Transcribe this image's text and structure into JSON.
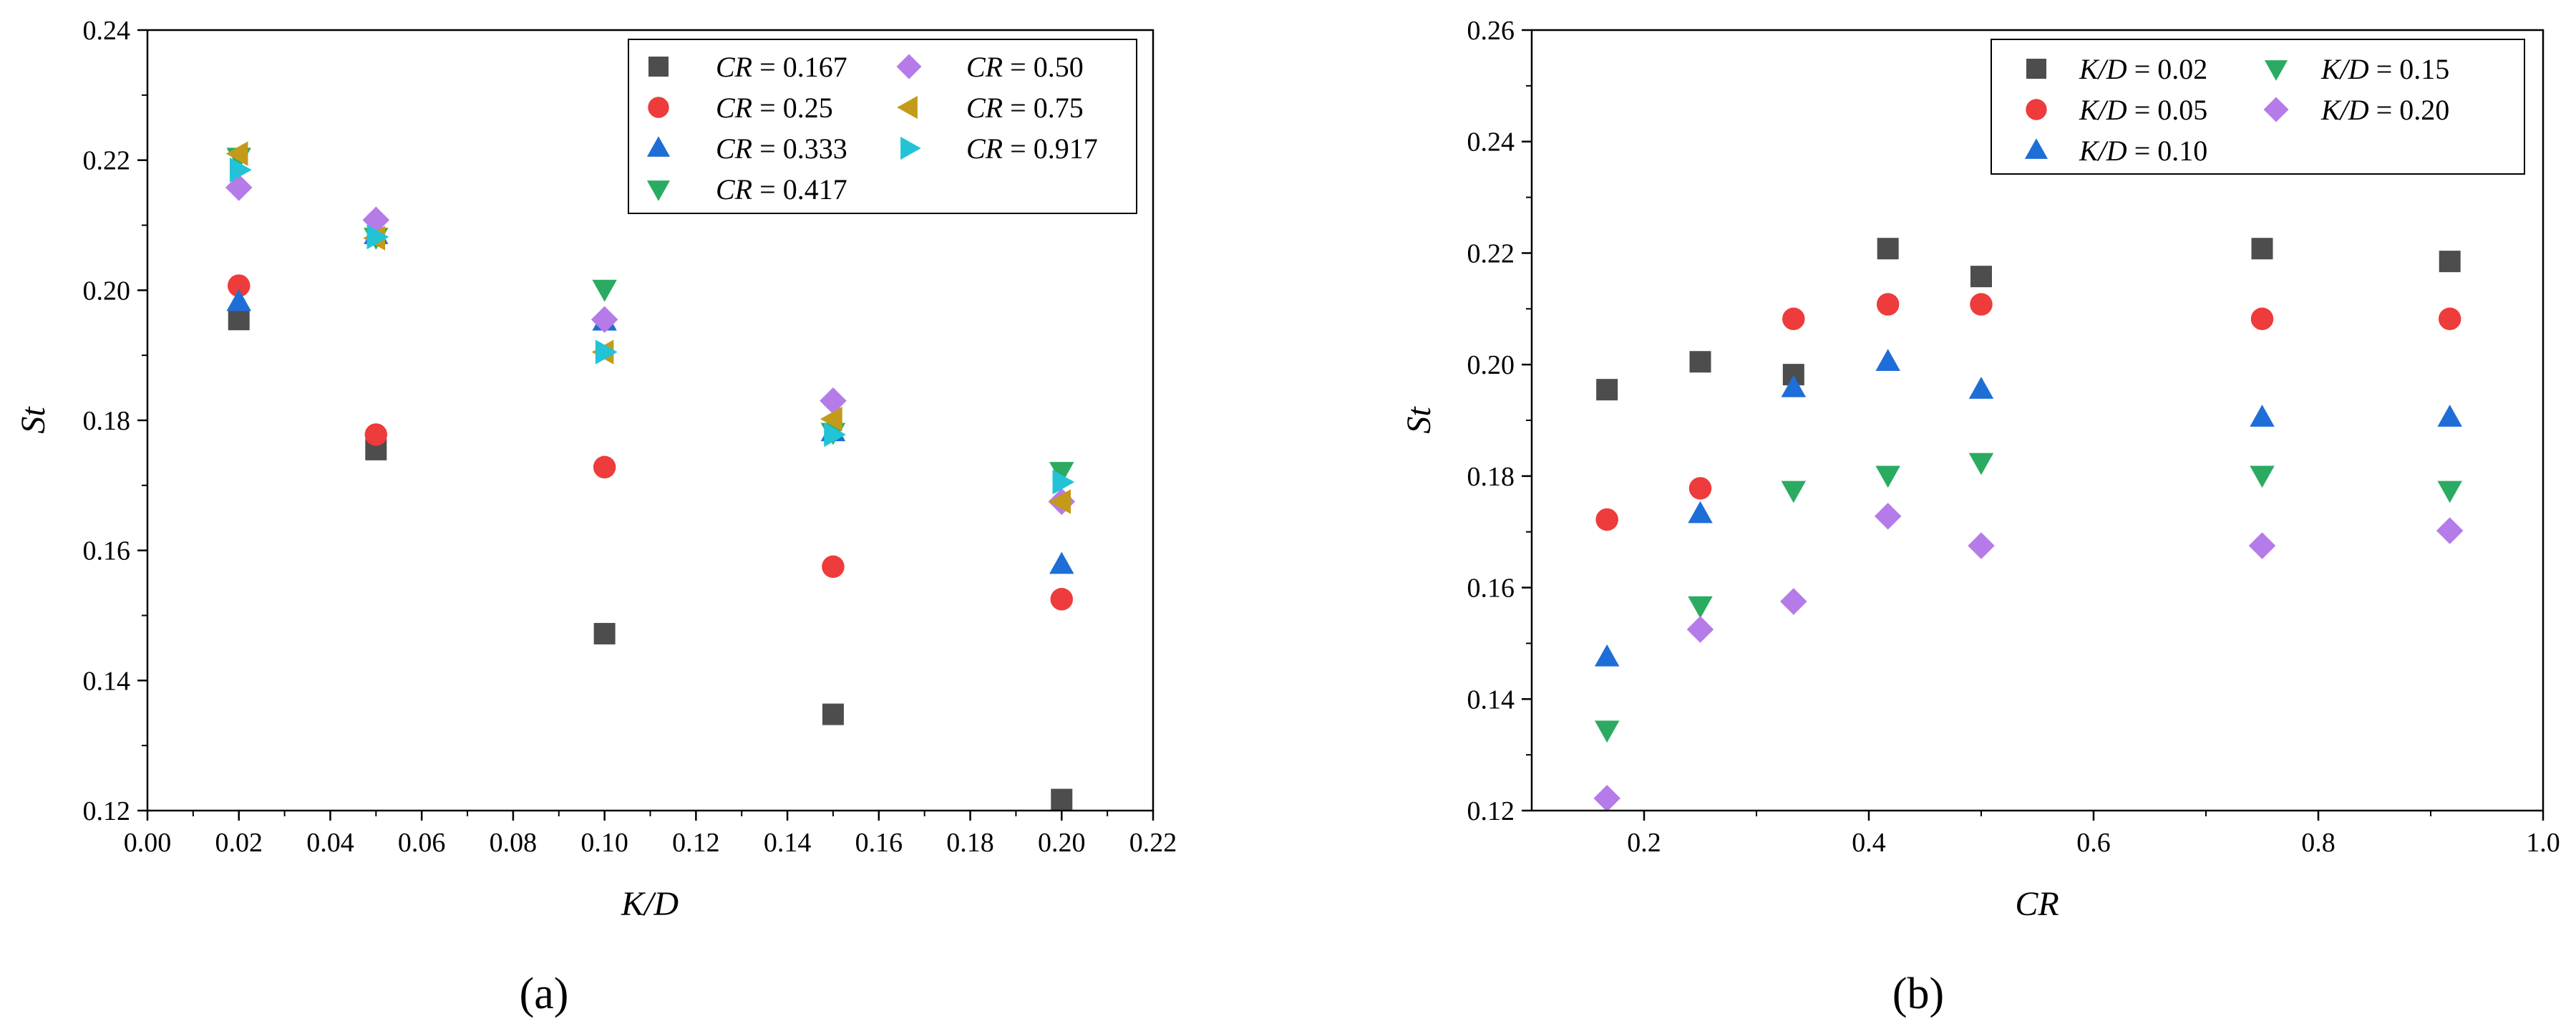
{
  "chart_data": [
    {
      "type": "scatter",
      "panel_label": "(a)",
      "xlabel": "K/D",
      "ylabel": "St",
      "xlim": [
        0.0,
        0.22
      ],
      "ylim": [
        0.12,
        0.24
      ],
      "xticks": [
        "0.00",
        "0.02",
        "0.04",
        "0.06",
        "0.08",
        "0.10",
        "0.12",
        "0.14",
        "0.16",
        "0.18",
        "0.20",
        "0.22"
      ],
      "yticks": [
        "0.12",
        "0.14",
        "0.16",
        "0.18",
        "0.20",
        "0.22",
        "0.24"
      ],
      "legend_position": "top-right",
      "legend_columns": 2,
      "series": [
        {
          "name": "CR = 0.167",
          "var": "CR",
          "val": "0.167",
          "marker": "square",
          "color": "#4d4d4d",
          "points": [
            [
              0.02,
              0.1955
            ],
            [
              0.05,
              0.1755
            ],
            [
              0.1,
              0.1472
            ],
            [
              0.15,
              0.1348
            ],
            [
              0.2,
              0.1217
            ]
          ]
        },
        {
          "name": "CR = 0.25",
          "var": "CR",
          "val": "0.25",
          "marker": "circle",
          "color": "#ee3b3b",
          "points": [
            [
              0.02,
              0.2007
            ],
            [
              0.05,
              0.1778
            ],
            [
              0.1,
              0.1728
            ],
            [
              0.15,
              0.1575
            ],
            [
              0.2,
              0.1525
            ]
          ]
        },
        {
          "name": "CR = 0.333",
          "var": "CR",
          "val": "0.333",
          "marker": "triangle-up",
          "color": "#1e6ed8",
          "points": [
            [
              0.02,
              0.1982
            ],
            [
              0.05,
              0.2085
            ],
            [
              0.1,
              0.1952
            ],
            [
              0.15,
              0.1782
            ],
            [
              0.2,
              0.1578
            ]
          ]
        },
        {
          "name": "CR = 0.417",
          "var": "CR",
          "val": "0.417",
          "marker": "triangle-down",
          "color": "#2bab62",
          "points": [
            [
              0.02,
              0.2205
            ],
            [
              0.05,
              0.2082
            ],
            [
              0.1,
              0.2002
            ],
            [
              0.15,
              0.1782
            ],
            [
              0.2,
              0.1722
            ]
          ]
        },
        {
          "name": "CR = 0.50",
          "var": "CR",
          "val": "0.50",
          "marker": "diamond",
          "color": "#b57be8",
          "points": [
            [
              0.02,
              0.2158
            ],
            [
              0.05,
              0.2108
            ],
            [
              0.1,
              0.1955
            ],
            [
              0.15,
              0.183
            ],
            [
              0.2,
              0.1675
            ]
          ]
        },
        {
          "name": "CR = 0.75",
          "var": "CR",
          "val": "0.75",
          "marker": "triangle-left",
          "color": "#c49a1a",
          "points": [
            [
              0.02,
              0.221
            ],
            [
              0.05,
              0.208
            ],
            [
              0.1,
              0.1905
            ],
            [
              0.15,
              0.1802
            ],
            [
              0.2,
              0.1675
            ]
          ]
        },
        {
          "name": "CR = 0.917",
          "var": "CR",
          "val": "0.917",
          "marker": "triangle-right",
          "color": "#22c3d6",
          "points": [
            [
              0.02,
              0.2185
            ],
            [
              0.05,
              0.2082
            ],
            [
              0.1,
              0.1905
            ],
            [
              0.15,
              0.1778
            ],
            [
              0.2,
              0.1705
            ]
          ]
        }
      ]
    },
    {
      "type": "scatter",
      "panel_label": "(b)",
      "xlabel": "CR",
      "ylabel": "St",
      "xlim": [
        0.1,
        1.0
      ],
      "ylim": [
        0.12,
        0.26
      ],
      "xticks": [
        "0.2",
        "0.4",
        "0.6",
        "0.8",
        "1.0"
      ],
      "yticks": [
        "0.12",
        "0.14",
        "0.16",
        "0.18",
        "0.20",
        "0.22",
        "0.24",
        "0.26"
      ],
      "legend_position": "top-right",
      "legend_columns": 2,
      "series": [
        {
          "name": "K/D = 0.02",
          "var": "K/D",
          "val": "0.02",
          "marker": "square",
          "color": "#4d4d4d",
          "points": [
            [
              0.167,
              0.1955
            ],
            [
              0.25,
              0.2005
            ],
            [
              0.333,
              0.1982
            ],
            [
              0.417,
              0.2208
            ],
            [
              0.5,
              0.2158
            ],
            [
              0.75,
              0.2208
            ],
            [
              0.917,
              0.2185
            ]
          ]
        },
        {
          "name": "K/D = 0.05",
          "var": "K/D",
          "val": "0.05",
          "marker": "circle",
          "color": "#ee3b3b",
          "points": [
            [
              0.167,
              0.1722
            ],
            [
              0.25,
              0.1778
            ],
            [
              0.333,
              0.2082
            ],
            [
              0.417,
              0.2108
            ],
            [
              0.5,
              0.2108
            ],
            [
              0.75,
              0.2082
            ],
            [
              0.917,
              0.2082
            ]
          ]
        },
        {
          "name": "K/D = 0.10",
          "var": "K/D",
          "val": "0.10",
          "marker": "triangle-up",
          "color": "#1e6ed8",
          "points": [
            [
              0.167,
              0.1475
            ],
            [
              0.25,
              0.1732
            ],
            [
              0.333,
              0.1958
            ],
            [
              0.417,
              0.2005
            ],
            [
              0.5,
              0.1955
            ],
            [
              0.75,
              0.1905
            ],
            [
              0.917,
              0.1905
            ]
          ]
        },
        {
          "name": "K/D = 0.15",
          "var": "K/D",
          "val": "0.15",
          "marker": "triangle-down",
          "color": "#2bab62",
          "points": [
            [
              0.167,
              0.1345
            ],
            [
              0.25,
              0.1568
            ],
            [
              0.333,
              0.1775
            ],
            [
              0.417,
              0.1802
            ],
            [
              0.5,
              0.1825
            ],
            [
              0.75,
              0.1802
            ],
            [
              0.917,
              0.1775
            ]
          ]
        },
        {
          "name": "K/D = 0.20",
          "var": "K/D",
          "val": "0.20",
          "marker": "diamond",
          "color": "#b57be8",
          "points": [
            [
              0.167,
              0.1222
            ],
            [
              0.25,
              0.1525
            ],
            [
              0.333,
              0.1575
            ],
            [
              0.417,
              0.1728
            ],
            [
              0.5,
              0.1675
            ],
            [
              0.75,
              0.1675
            ],
            [
              0.917,
              0.1702
            ]
          ]
        }
      ]
    }
  ]
}
